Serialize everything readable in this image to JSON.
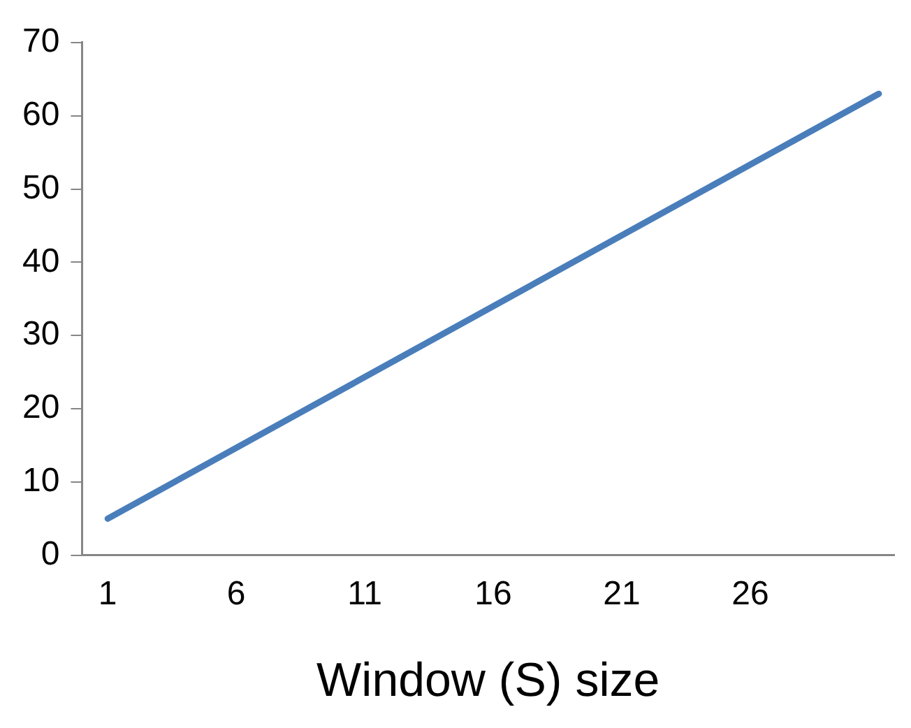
{
  "chart_data": {
    "type": "line",
    "xlabel": "Window (S) size",
    "x": [
      1,
      31
    ],
    "series": [
      {
        "color": "#4a7ebb",
        "values": [
          5,
          63
        ]
      }
    ],
    "xlim": [
      0,
      31.6
    ],
    "xticks": [
      1,
      6,
      11,
      16,
      21,
      26
    ],
    "ylim": [
      0,
      70
    ],
    "yticks": [
      0,
      10,
      20,
      30,
      40,
      50,
      60,
      70
    ],
    "grid": false,
    "legend": false,
    "marker": "none",
    "line_style": "solid"
  }
}
